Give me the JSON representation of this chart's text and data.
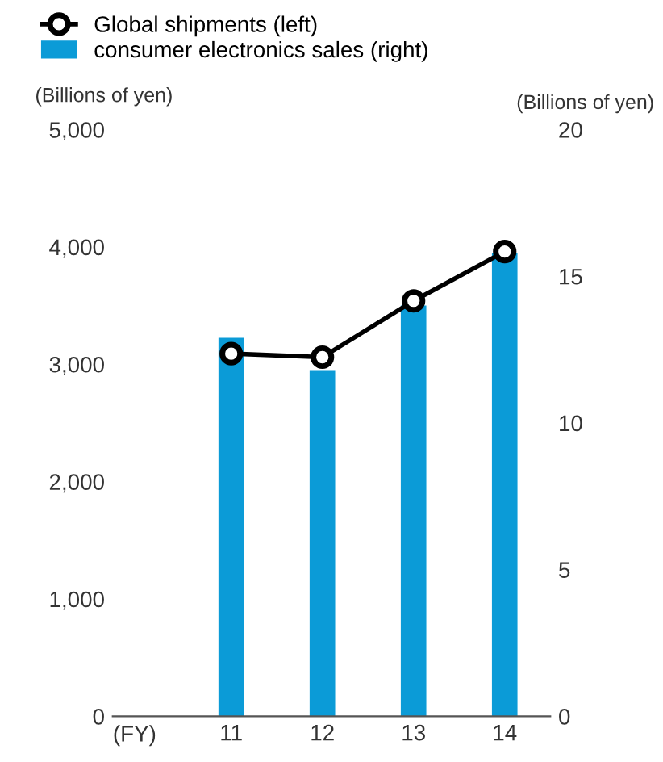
{
  "chart_data": {
    "type": "bar",
    "categories": [
      "11",
      "12",
      "13",
      "14"
    ],
    "xlabel": "(FY)",
    "ylabel": "(Billions of yen)",
    "y2label": "(Billions of yen)",
    "series": [
      {
        "name": "Global shipments (left)",
        "type": "line",
        "color": "#000000",
        "values": [
          3090,
          3060,
          3540,
          3960
        ],
        "marker": "circle"
      },
      {
        "name": "consumer electronics sales (right)",
        "axis": "y2",
        "color": "#0b9bd7",
        "values": [
          12.9,
          11.8,
          14.0,
          15.8
        ]
      }
    ],
    "ylim": [
      0,
      5000
    ],
    "yticks": [
      0,
      {
        "value": 1000,
        "label": "1,000"
      },
      {
        "value": 2000,
        "label": "2,000"
      },
      {
        "value": 3000,
        "label": "3,000"
      },
      {
        "value": 4000,
        "label": "4,000"
      },
      {
        "value": 5000,
        "label": "5,000"
      }
    ],
    "y2lim": [
      0,
      20
    ],
    "y2ticks": [
      0,
      5,
      10,
      15,
      20
    ],
    "legend": "top left",
    "grid": false
  }
}
